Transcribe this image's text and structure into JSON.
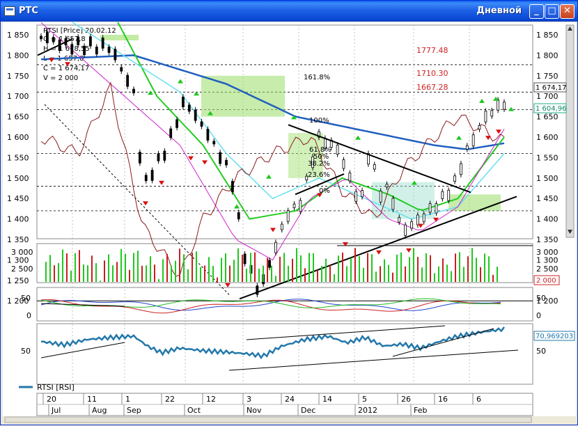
{
  "window": {
    "title": "РТС",
    "mode": "Дневной",
    "buttons": {
      "minimize": "_",
      "maximize": "□",
      "close": "✕"
    }
  },
  "colors": {
    "price_line": "#1f5fbf",
    "up_marker": "#1ec81e",
    "down_marker": "#d81010",
    "rsi_line": "#2277aa",
    "sma_green": "#22cc22",
    "sma_cyan": "#66e0f0",
    "sma_purple": "#cc22cc",
    "price_brown": "#8b1a1a"
  },
  "info": {
    "date_line": "RTSI [Price] 20.02.12",
    "o": "O = 1 657,8",
    "h": "H = 1 678,55",
    "l": "L = 1 657,8",
    "c": "C = 1 674,17",
    "v": "V = 2 000"
  },
  "price_panel": {
    "y_ticks_left": [
      "1 850",
      "1 800",
      "1 750",
      "1 700",
      "1 650",
      "1 600",
      "1 550",
      "1 500",
      "1 450",
      "1 400",
      "1 350",
      "1 300",
      "1 250",
      "1 200"
    ],
    "y_ticks_right": [
      "1 850",
      "1 800",
      "1 750",
      "1 700",
      "1 650",
      "1 600",
      "1 550",
      "1 500",
      "1 450",
      "1 400",
      "1 350",
      "1 300",
      "1 250",
      "1 200"
    ],
    "last_price": "1 674,17",
    "ma_value": "1 604,96",
    "fib_labels": [
      "161.8%",
      "100%",
      "61.8%",
      "50%",
      "38.2%",
      "23.6%",
      "0%"
    ],
    "targets": [
      "1777.48",
      "1710.30",
      "1667.28"
    ]
  },
  "volume_panel": {
    "y_ticks": [
      "3 000",
      "2 500"
    ],
    "y_ticks_right": [
      "3 000",
      "2 500"
    ],
    "last_value": "2 000"
  },
  "osc_panel": {
    "y_ticks": [
      "50",
      "0"
    ],
    "y_ticks_right": [
      "50",
      "0"
    ]
  },
  "rsi_panel": {
    "y_ticks": [
      "50"
    ],
    "y_ticks_right": [
      "50"
    ],
    "last_value": "70,969203",
    "legend": "RTSI [RSI]"
  },
  "x_axis": {
    "days": [
      "20",
      "11",
      "1",
      "22",
      "12",
      "3",
      "24",
      "14",
      "5",
      "26",
      "16",
      "6"
    ],
    "months": [
      "Jul",
      "Aug",
      "Sep",
      "Oct",
      "Nov",
      "Dec",
      "2012",
      "Feb"
    ]
  },
  "chart_data": {
    "type": "line",
    "title": "РТС",
    "xlabel": "",
    "ylabel": "",
    "ylim": [
      1200,
      1870
    ],
    "x": [
      "Jul",
      "Aug",
      "Sep",
      "Oct",
      "Nov",
      "Dec",
      "2012",
      "Feb"
    ],
    "series": [
      {
        "name": "RTSI [Price]",
        "values": [
          1830,
          1780,
          1460,
          1210,
          1560,
          1380,
          1520,
          1674
        ]
      },
      {
        "name": "RTSI [RSI]",
        "values": [
          52,
          60,
          38,
          30,
          62,
          55,
          64,
          71
        ]
      }
    ]
  }
}
